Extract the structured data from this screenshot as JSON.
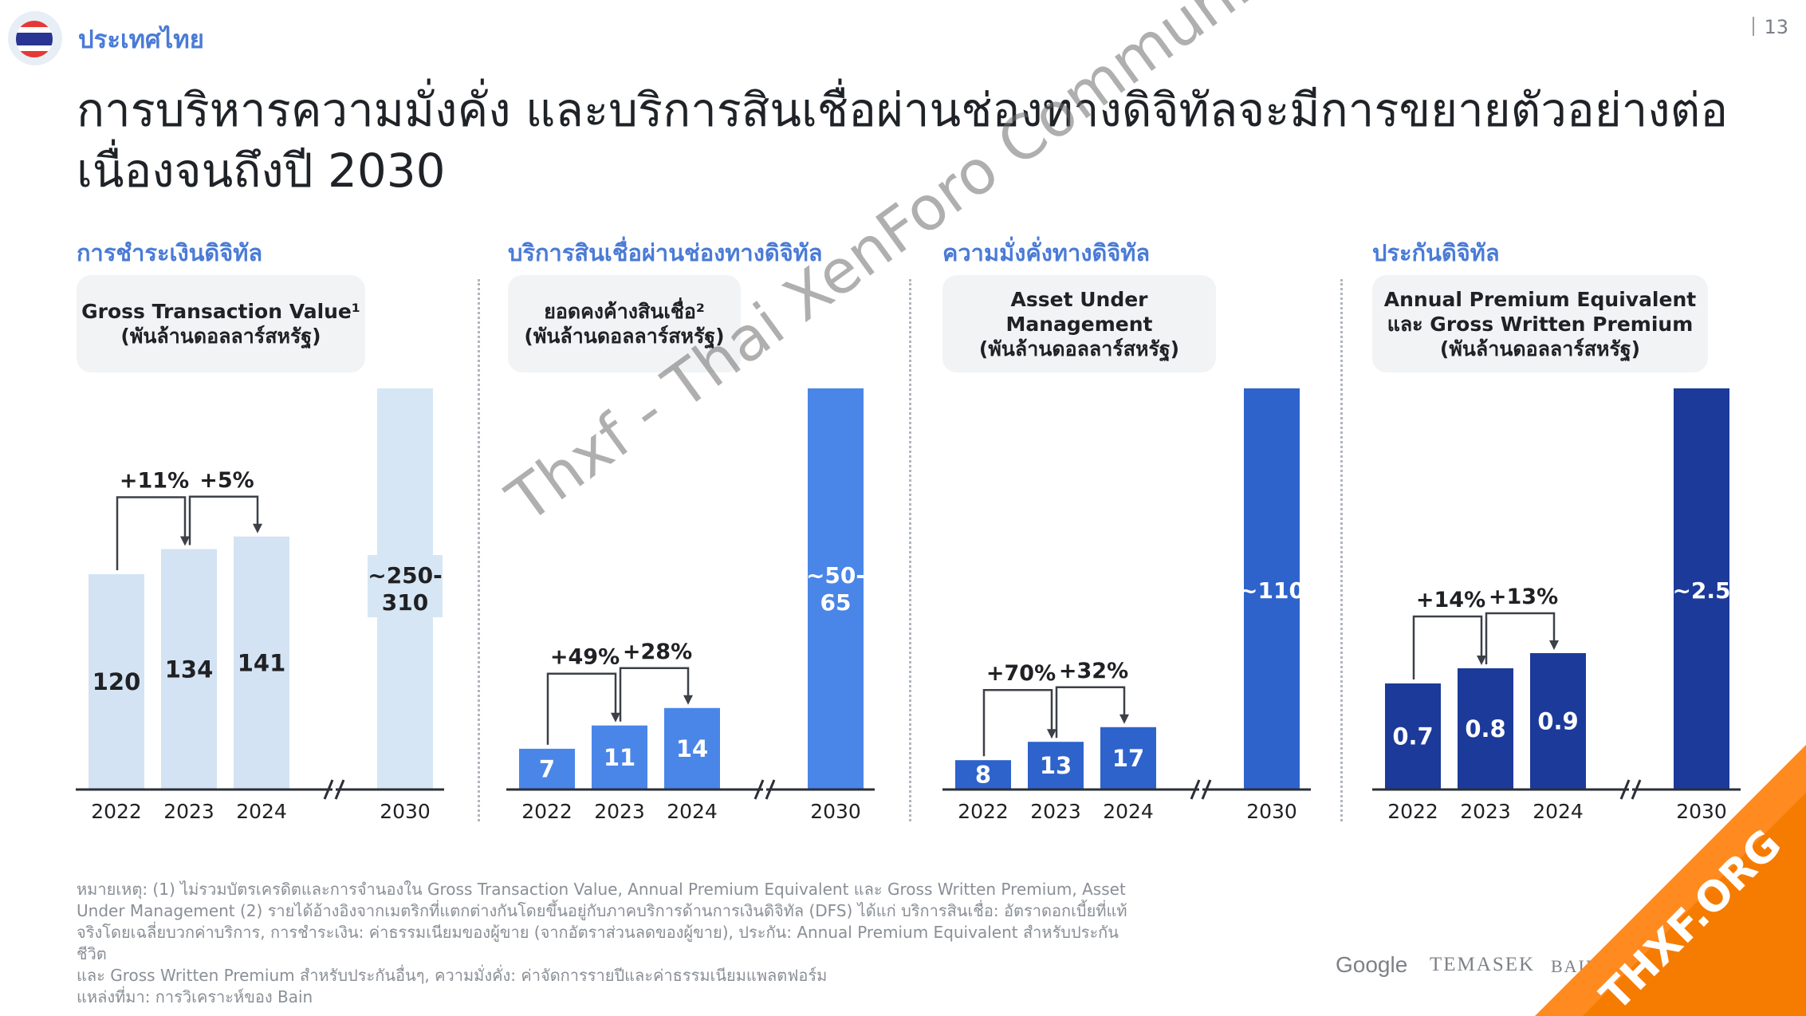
{
  "header": {
    "country": "ประเทศไทย",
    "page_number": "13",
    "title_line1": "การบริหารความมั่งคั่ง และบริการสินเชื่อผ่านช่องทางดิจิทัลจะมีการขยายตัวอย่างต่อ",
    "title_line2": "เนื่องจนถึงปี 2030"
  },
  "sections": [
    {
      "title": "การชำระเงินดิจิทัล",
      "metric_line1": "Gross Transaction Value¹",
      "metric_line2": "(พันล้านดอลลาร์สหรัฐ)",
      "metric_line3": ""
    },
    {
      "title": "บริการสินเชื่อผ่านช่องทางดิจิทัล",
      "metric_line1": "ยอดคงค้างสินเชื่อ²",
      "metric_line2": "(พันล้านดอลลาร์สหรัฐ)",
      "metric_line3": ""
    },
    {
      "title": "ความมั่งคั่งทางดิจิทัล",
      "metric_line1": "Asset Under",
      "metric_line2": "Management",
      "metric_line3": "(พันล้านดอลลาร์สหรัฐ)"
    },
    {
      "title": "ประกันดิจิทัล",
      "metric_line1": "Annual Premium Equivalent",
      "metric_line2": "และ Gross Written Premium",
      "metric_line3": "(พันล้านดอลลาร์สหรัฐ)"
    }
  ],
  "chart_data": [
    {
      "type": "bar",
      "categories": [
        "2022",
        "2023",
        "2024",
        "2030"
      ],
      "values": [
        120,
        134,
        141,
        280
      ],
      "value_labels": [
        "120",
        "134",
        "141",
        "~250-310"
      ],
      "growth_labels": [
        "+11%",
        "+5%"
      ],
      "color": "#d3e3f3"
    },
    {
      "type": "bar",
      "categories": [
        "2022",
        "2023",
        "2024",
        "2030"
      ],
      "values": [
        7,
        11,
        14,
        57.5
      ],
      "value_labels": [
        "7",
        "11",
        "14",
        "~50-65"
      ],
      "growth_labels": [
        "+49%",
        "+28%"
      ],
      "color": "#4a86e8"
    },
    {
      "type": "bar",
      "categories": [
        "2022",
        "2023",
        "2024",
        "2030"
      ],
      "values": [
        8,
        13,
        17,
        110
      ],
      "value_labels": [
        "8",
        "13",
        "17",
        "~110"
      ],
      "growth_labels": [
        "+70%",
        "+32%"
      ],
      "color": "#2e63cc"
    },
    {
      "type": "bar",
      "categories": [
        "2022",
        "2023",
        "2024",
        "2030"
      ],
      "values": [
        0.7,
        0.8,
        0.9,
        2.5
      ],
      "value_labels": [
        "0.7",
        "0.8",
        "0.9",
        "~2.5"
      ],
      "growth_labels": [
        "+14%",
        "+13%"
      ],
      "color": "#1c3a9a"
    }
  ],
  "footnote": {
    "line1": "หมายเหตุ: (1) ไม่รวมบัตรเครดิตและการจำนองใน Gross Transaction Value, Annual Premium Equivalent และ Gross Written Premium, Asset",
    "line2": "Under Management (2) รายได้อ้างอิงจากเมตริกที่แตกต่างกันโดยขึ้นอยู่กับภาคบริการด้านการเงินดิจิทัล (DFS) ได้แก่ บริการสินเชื่อ: อัตราดอกเบี้ยที่แท้",
    "line3": "จริงโดยเฉลี่ยบวกค่าบริการ, การชำระเงิน: ค่าธรรมเนียมของผู้ขาย (จากอัตราส่วนลดของผู้ขาย), ประกัน: Annual Premium Equivalent สำหรับประกันชีวิต",
    "line4": "และ Gross Written Premium สำหรับประกันอื่นๆ, ความมั่งคั่ง: ค่าจัดการรายปีและค่าธรรมเนียมแพลตฟอร์ม",
    "line5": "แหล่งที่มา: การวิเคราะห์ของ Bain"
  },
  "logos": {
    "google": "Google",
    "temasek": "TEMASEK",
    "bain": "BAIN & COMPANY"
  },
  "watermark": "Thxf - Thai XenForo Community",
  "corner_badge": "THXF.ORG"
}
